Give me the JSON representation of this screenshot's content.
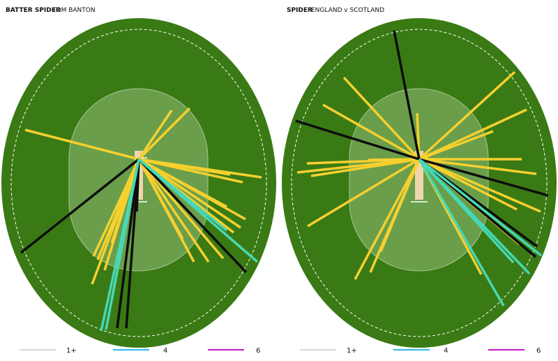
{
  "panels": [
    {
      "title": "BATTER SPIDER",
      "subtitle": "TOM BANTON",
      "legend": [
        "1+",
        "4",
        "6"
      ]
    },
    {
      "title": "SPIDER",
      "subtitle": "ENGLAND v SCOTLAND",
      "legend": [
        "1+",
        "4",
        "6"
      ]
    }
  ]
}
